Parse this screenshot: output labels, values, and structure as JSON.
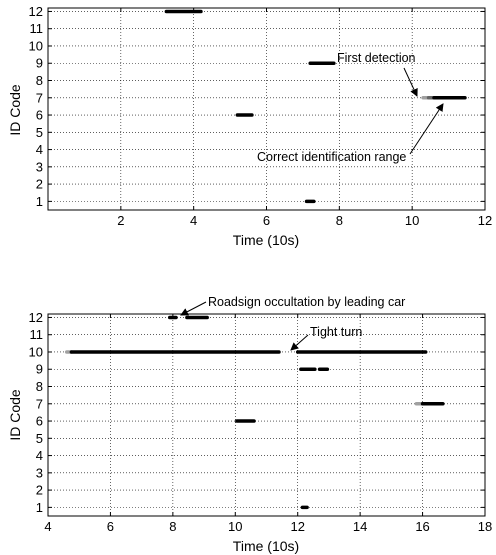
{
  "chart_data": [
    {
      "type": "timeline",
      "xlabel": "Time (10s)",
      "ylabel": "ID Code",
      "xlim": [
        0,
        12
      ],
      "ylim": [
        0.5,
        12.2
      ],
      "xticks": [
        2,
        4,
        6,
        8,
        10,
        12
      ],
      "yticks": [
        1,
        2,
        3,
        4,
        5,
        6,
        7,
        8,
        9,
        10,
        11,
        12
      ],
      "grid": true,
      "segments": [
        {
          "id": 12,
          "start": 3.25,
          "end": 4.2,
          "color": "#000000"
        },
        {
          "id": 9,
          "start": 7.2,
          "end": 7.85,
          "color": "#000000"
        },
        {
          "id": 7,
          "start": 10.3,
          "end": 10.45,
          "color": "#a0a0a0"
        },
        {
          "id": 7,
          "start": 10.45,
          "end": 10.6,
          "color": "#666666"
        },
        {
          "id": 7,
          "start": 10.6,
          "end": 11.45,
          "color": "#000000"
        },
        {
          "id": 6,
          "start": 5.2,
          "end": 5.6,
          "color": "#000000"
        },
        {
          "id": 1,
          "start": 7.1,
          "end": 7.3,
          "color": "#000000"
        }
      ],
      "annotations": [
        {
          "text": "First detection",
          "x": 10.35,
          "y": 7.0
        },
        {
          "text": "Correct identification range",
          "x": 11.0,
          "y": 7.0
        }
      ]
    },
    {
      "type": "timeline",
      "xlabel": "Time (10s)",
      "ylabel": "ID Code",
      "xlim": [
        4,
        18
      ],
      "ylim": [
        0.5,
        12.2
      ],
      "xticks": [
        4,
        6,
        8,
        10,
        12,
        14,
        16,
        18
      ],
      "yticks": [
        1,
        2,
        3,
        4,
        5,
        6,
        7,
        8,
        9,
        10,
        11,
        12
      ],
      "grid": true,
      "segments": [
        {
          "id": 12,
          "start": 7.9,
          "end": 8.1,
          "color": "#000000"
        },
        {
          "id": 12,
          "start": 8.45,
          "end": 9.1,
          "color": "#000000"
        },
        {
          "id": 10,
          "start": 4.6,
          "end": 4.75,
          "color": "#a0a0a0"
        },
        {
          "id": 10,
          "start": 4.75,
          "end": 11.4,
          "color": "#000000"
        },
        {
          "id": 10,
          "start": 12.0,
          "end": 16.1,
          "color": "#000000"
        },
        {
          "id": 9,
          "start": 12.1,
          "end": 12.55,
          "color": "#000000"
        },
        {
          "id": 9,
          "start": 12.7,
          "end": 12.95,
          "color": "#000000"
        },
        {
          "id": 7,
          "start": 15.8,
          "end": 16.0,
          "color": "#a0a0a0"
        },
        {
          "id": 7,
          "start": 16.0,
          "end": 16.65,
          "color": "#000000"
        },
        {
          "id": 6,
          "start": 10.05,
          "end": 10.6,
          "color": "#000000"
        },
        {
          "id": 1,
          "start": 12.15,
          "end": 12.3,
          "color": "#000000"
        }
      ],
      "annotations": [
        {
          "text": "Roadsign occultation by leading car",
          "x": 8.0,
          "y": 12.0
        },
        {
          "text": "Tight turn",
          "x": 11.7,
          "y": 10.0
        }
      ]
    }
  ]
}
